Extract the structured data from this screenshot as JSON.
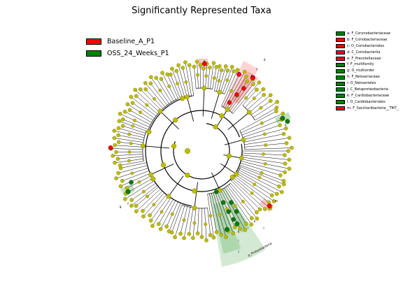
{
  "title": "Significantly Represented Taxa",
  "legend": [
    {
      "label": "Baseline_A_P1",
      "color": "#ff0000"
    },
    {
      "label": "OSS_24_Weeks_P1",
      "color": "#008000"
    }
  ],
  "key": [
    {
      "text": "a: F_Corynebacteriaceae",
      "color": "#008000"
    },
    {
      "text": "b: F_Coriobacteriaceae",
      "color": "#ff0000"
    },
    {
      "text": "c: O_Coriobacteriales",
      "color": "#ff0000"
    },
    {
      "text": "d: C_Coriobacteriia",
      "color": "#ff0000"
    },
    {
      "text": "e: F_Prevotellaceae",
      "color": "#ff0000"
    },
    {
      "text": "f: F_multifamily",
      "color": "#008000"
    },
    {
      "text": "g: O_multiorder",
      "color": "#008000"
    },
    {
      "text": "h: F_Neisseriaceae",
      "color": "#008000"
    },
    {
      "text": "i: O_Neisseriales",
      "color": "#008000"
    },
    {
      "text": "j: C_Betaproteobacteria",
      "color": "#008000"
    },
    {
      "text": "k: F_Cardiobacteriaceae",
      "color": "#008000"
    },
    {
      "text": "l: O_Cardiobacteriales",
      "color": "#008000"
    },
    {
      "text": "m: F_Saccharibacteria__TM7_",
      "color": "#ff0000"
    }
  ],
  "labels": {
    "proteobacteria": "p_Proteobacteria",
    "a": "a",
    "b": "b",
    "c": "c",
    "d": "d",
    "e": "e",
    "f": "f",
    "g": "g",
    "h": "h",
    "i": "i",
    "j": "j",
    "k": "k",
    "l": "l",
    "m": "m"
  },
  "colors": {
    "red": "#ff0000",
    "green": "#008000",
    "node": "#bcbc00",
    "red_band": "#ff8080",
    "green_band": "#80c080"
  }
}
